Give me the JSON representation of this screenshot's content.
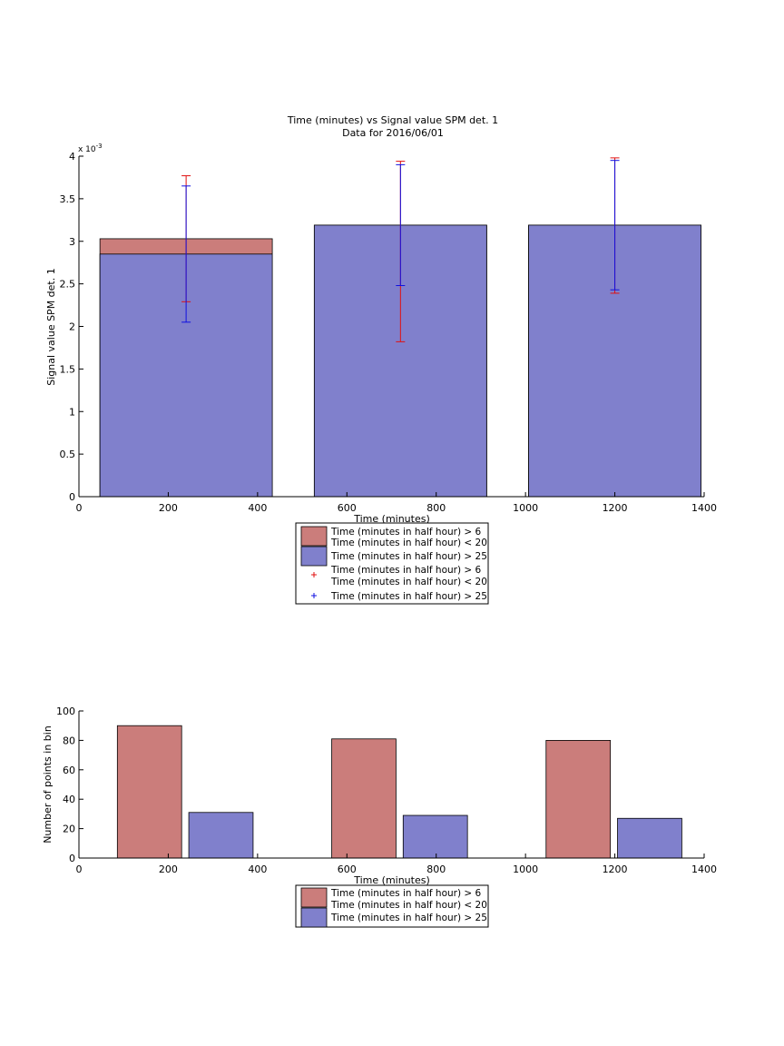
{
  "colors": {
    "red_bar": "#cb7d7b",
    "blue_bar": "#8080cc",
    "red_err": "#e01010",
    "blue_err": "#1010e0",
    "axis": "#000000"
  },
  "legend_labels": [
    [
      "Time (minutes in half hour) > 6",
      "Time (minutes in half hour) < 20"
    ],
    [
      "Time (minutes in half hour) > 25"
    ]
  ],
  "chart_data": [
    {
      "type": "bar",
      "title": "Time (minutes) vs Signal value SPM det. 1",
      "subtitle": "Data for 2016/06/01",
      "xlabel": "Time (minutes)",
      "ylabel": "Signal value SPM det. 1",
      "y_exponent_label": "x 10",
      "y_exponent_power": "-3",
      "xlim": [
        0,
        1400
      ],
      "ylim": [
        0,
        4
      ],
      "xticks": [
        0,
        200,
        400,
        600,
        800,
        1000,
        1200,
        1400
      ],
      "yticks": [
        0,
        0.5,
        1,
        1.5,
        2,
        2.5,
        3,
        3.5,
        4
      ],
      "ytick_labels": [
        "0",
        "0.5",
        "1",
        "1.5",
        "2",
        "2.5",
        "3",
        "3.5",
        "4"
      ],
      "bar_width": 386,
      "grid": false,
      "legend_position": "below",
      "series": [
        {
          "color": "red",
          "bars": [
            {
              "x": 240,
              "value": 3.03
            },
            {
              "x": 720,
              "value": 3.19
            },
            {
              "x": 1200,
              "value": 3.19
            }
          ],
          "errors": [
            {
              "x": 240,
              "low": 2.29,
              "high": 3.77
            },
            {
              "x": 720,
              "low": 1.82,
              "high": 3.94
            },
            {
              "x": 1200,
              "low": 2.39,
              "high": 3.98
            }
          ]
        },
        {
          "color": "blue",
          "bars": [
            {
              "x": 240,
              "value": 2.85
            },
            {
              "x": 720,
              "value": 3.19
            },
            {
              "x": 1200,
              "value": 3.19
            }
          ],
          "errors": [
            {
              "x": 240,
              "low": 2.05,
              "high": 3.65
            },
            {
              "x": 720,
              "low": 2.48,
              "high": 3.9
            },
            {
              "x": 1200,
              "low": 2.43,
              "high": 3.95
            }
          ]
        }
      ]
    },
    {
      "type": "bar",
      "xlabel": "Time (minutes)",
      "ylabel": "Number of points in bin",
      "xlim": [
        0,
        1400
      ],
      "ylim": [
        0,
        100
      ],
      "xticks": [
        0,
        200,
        400,
        600,
        800,
        1000,
        1200,
        1400
      ],
      "yticks": [
        0,
        20,
        40,
        60,
        80,
        100
      ],
      "ytick_labels": [
        "0",
        "20",
        "40",
        "60",
        "80",
        "100"
      ],
      "grid": false,
      "legend_position": "below",
      "series": [
        {
          "color": "red",
          "bars": [
            {
              "x0": 86,
              "x1": 230,
              "value": 90
            },
            {
              "x0": 566,
              "x1": 710,
              "value": 81
            },
            {
              "x0": 1046,
              "x1": 1190,
              "value": 80
            }
          ]
        },
        {
          "color": "blue",
          "bars": [
            {
              "x0": 246,
              "x1": 390,
              "value": 31
            },
            {
              "x0": 726,
              "x1": 870,
              "value": 29
            },
            {
              "x0": 1206,
              "x1": 1350,
              "value": 27
            }
          ]
        }
      ]
    }
  ]
}
